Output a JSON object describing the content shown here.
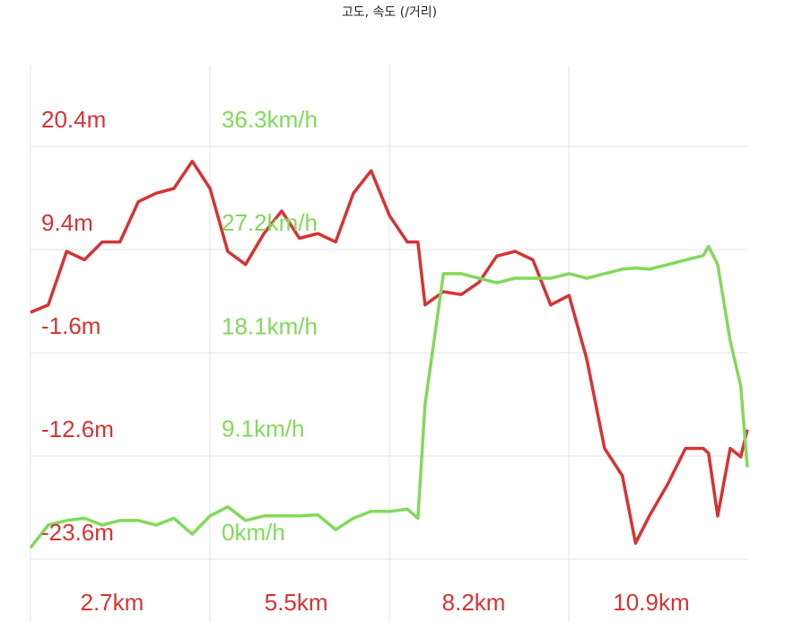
{
  "chart_data": {
    "type": "line",
    "title": "고도, 속도 (/거리)",
    "x": [
      1.46,
      1.73,
      2.01,
      2.28,
      2.55,
      2.82,
      3.1,
      3.37,
      3.64,
      3.92,
      4.19,
      4.46,
      4.73,
      5.01,
      5.28,
      5.55,
      5.83,
      6.1,
      6.37,
      6.64,
      6.92,
      7.19,
      7.35,
      7.46,
      7.74,
      8.01,
      8.28,
      8.55,
      8.83,
      9.1,
      9.37,
      9.65,
      9.92,
      10.19,
      10.46,
      10.66,
      10.87,
      11.15,
      11.42,
      11.69,
      11.77,
      11.91,
      12.1,
      12.26,
      12.36
    ],
    "series": [
      {
        "color": "#d63333",
        "axis": "y",
        "values": [
          2.7,
          3.5,
          9.2,
          8.3,
          10.2,
          10.2,
          14.5,
          15.4,
          15.9,
          18.8,
          15.9,
          9.2,
          7.8,
          11.1,
          13.5,
          10.6,
          11.1,
          10.2,
          15.4,
          17.8,
          13.0,
          10.2,
          10.2,
          3.5,
          4.9,
          4.6,
          5.9,
          8.7,
          9.2,
          8.3,
          3.5,
          4.5,
          -2.3,
          -11.8,
          -14.7,
          -21.9,
          -19.0,
          -15.6,
          -11.8,
          -11.8,
          -12.3,
          -19.0,
          -11.8,
          -12.7,
          -9.8
        ]
      },
      {
        "color": "#82d95a",
        "axis": "y2",
        "values": [
          1.0,
          3.0,
          3.4,
          3.6,
          3.0,
          3.4,
          3.4,
          3.0,
          3.6,
          2.2,
          3.8,
          4.6,
          3.4,
          3.8,
          3.8,
          3.8,
          3.9,
          2.6,
          3.6,
          4.2,
          4.2,
          4.4,
          3.6,
          13.6,
          25.1,
          25.1,
          24.7,
          24.3,
          24.7,
          24.7,
          24.7,
          25.1,
          24.7,
          25.1,
          25.5,
          25.6,
          25.5,
          25.9,
          26.3,
          26.7,
          27.5,
          25.9,
          19.2,
          15.2,
          8.1
        ]
      }
    ],
    "xlim": [
      1.46,
      12.36
    ],
    "xticks": [
      {
        "value": 2.7,
        "label": "2.7km"
      },
      {
        "value": 5.5,
        "label": "5.5km"
      },
      {
        "value": 8.2,
        "label": "8.2km"
      },
      {
        "value": 10.9,
        "label": "10.9km"
      }
    ],
    "ylim": [
      -23.6,
      20.4
    ],
    "yticks": [
      {
        "value": -23.6,
        "label": "-23.6m"
      },
      {
        "value": -12.6,
        "label": "-12.6m"
      },
      {
        "value": -1.6,
        "label": "-1.6m"
      },
      {
        "value": 9.4,
        "label": "9.4m"
      },
      {
        "value": 20.4,
        "label": "20.4m"
      }
    ],
    "y2lim": [
      0,
      36.3
    ],
    "y2ticks": [
      {
        "value": 0,
        "label": "0km/h"
      },
      {
        "value": 9.1,
        "label": "9.1km/h"
      },
      {
        "value": 18.1,
        "label": "18.1km/h"
      },
      {
        "value": 27.2,
        "label": "27.2km/h"
      },
      {
        "value": 36.3,
        "label": "36.3km/h"
      }
    ],
    "grid": true
  }
}
